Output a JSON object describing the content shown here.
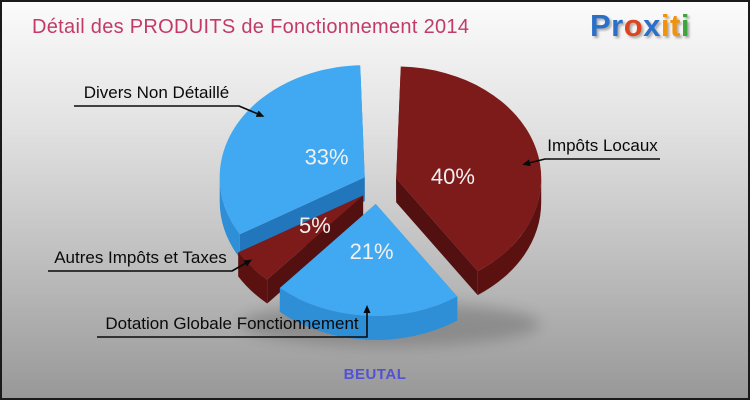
{
  "title": {
    "text": "Détail des PRODUITS de Fonctionnement 2014",
    "color": "#C23A68"
  },
  "logo": {
    "name": "proxiti",
    "letters": [
      {
        "ch": "P",
        "color": "#2B70C8"
      },
      {
        "ch": "r",
        "color": "#2B70C8"
      },
      {
        "ch": "o",
        "color": "#DB4621"
      },
      {
        "ch": "x",
        "color": "#2B70C8"
      },
      {
        "ch": "i",
        "color": "#F1920E"
      },
      {
        "ch": "t",
        "color": "#F1920E"
      },
      {
        "ch": "i",
        "color": "#3CA53C"
      }
    ]
  },
  "footer": {
    "commune": "BEUTAL",
    "color": "#5252D4"
  },
  "chart_data": {
    "type": "pie",
    "style": "3d-exploded",
    "title": "Détail des PRODUITS de Fonctionnement 2014",
    "unit": "%",
    "legend_position": "callout-labels-with-arrows",
    "label_text_color": "#F2EFEF",
    "slices": [
      {
        "label": "Impôts Locaux",
        "value": 40,
        "pct_label": "40%",
        "color": "#7D1B1B",
        "side_color": "#5C1111",
        "cut_color": "#521010"
      },
      {
        "label": "Dotation Globale Fonctionnement",
        "value": 21,
        "pct_label": "21%",
        "color": "#41A9F1",
        "side_color": "#2E8ED6",
        "cut_color": "#2276BB"
      },
      {
        "label": "Autres Impôts et Taxes",
        "value": 5,
        "pct_label": "5%",
        "color": "#7D1B1B",
        "side_color": "#5C1111",
        "cut_color": "#521010"
      },
      {
        "label": "Divers Non Détaillé",
        "value": 33,
        "pct_label": "33%",
        "color": "#41A9F1",
        "side_color": "#2E8ED6",
        "cut_color": "#2276BB"
      }
    ]
  }
}
